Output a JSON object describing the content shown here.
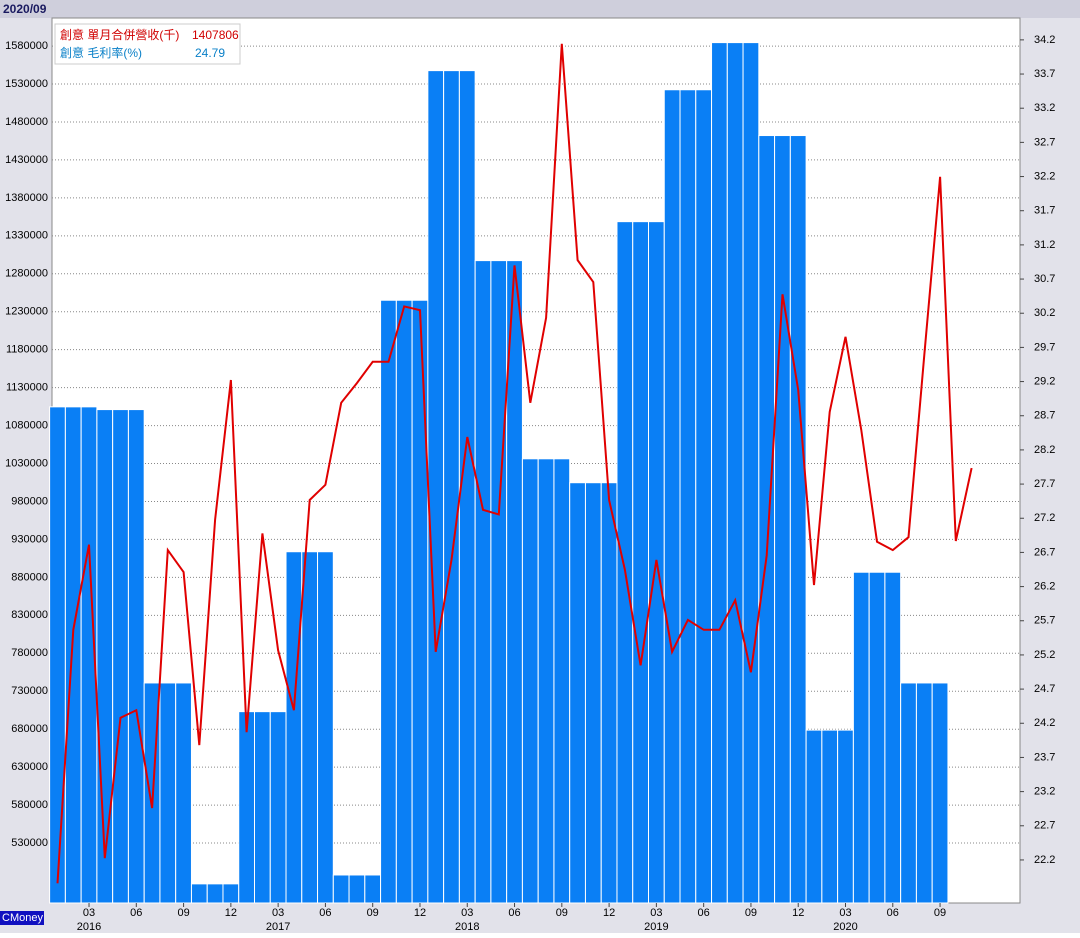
{
  "chart_data": {
    "type": "combo",
    "title": "2020/09",
    "watermark": "CMoney",
    "categories": [
      null,
      null,
      "03",
      null,
      null,
      "06",
      null,
      null,
      "09",
      null,
      null,
      "12",
      null,
      null,
      "03",
      null,
      null,
      "06",
      null,
      null,
      "09",
      null,
      null,
      "12",
      null,
      null,
      "03",
      null,
      null,
      "06",
      null,
      null,
      "09",
      null,
      null,
      "12",
      null,
      null,
      "03",
      null,
      null,
      "06",
      null,
      null,
      "09",
      null,
      null,
      "12",
      null,
      null,
      "03",
      null,
      null,
      "06",
      null,
      null,
      "09",
      null,
      null
    ],
    "years": [
      null,
      null,
      "2016",
      null,
      null,
      null,
      null,
      null,
      null,
      null,
      null,
      null,
      null,
      null,
      "2017",
      null,
      null,
      null,
      null,
      null,
      null,
      null,
      null,
      null,
      null,
      null,
      "2018",
      null,
      null,
      null,
      null,
      null,
      null,
      null,
      null,
      null,
      null,
      null,
      "2019",
      null,
      null,
      null,
      null,
      null,
      null,
      null,
      null,
      null,
      null,
      null,
      "2020",
      null,
      null,
      null,
      null,
      null,
      null,
      null,
      null
    ],
    "series": [
      {
        "name": "創意 毛利率(%)",
        "type": "bar",
        "axis": "y2",
        "color": "#0a7ff5",
        "label_color": "#0a80c8",
        "values": [
          28.83,
          28.83,
          28.83,
          28.79,
          28.79,
          28.79,
          24.79,
          24.79,
          24.79,
          21.85,
          21.85,
          21.85,
          24.37,
          24.37,
          24.37,
          26.71,
          26.71,
          26.71,
          21.98,
          21.98,
          21.98,
          30.39,
          30.39,
          30.39,
          33.75,
          33.75,
          33.75,
          30.97,
          30.97,
          30.97,
          28.07,
          28.07,
          28.07,
          27.72,
          27.72,
          27.72,
          31.54,
          31.54,
          31.54,
          33.47,
          33.47,
          33.47,
          34.16,
          34.16,
          34.16,
          32.8,
          32.8,
          32.8,
          24.1,
          24.1,
          24.1,
          26.41,
          26.41,
          26.41,
          24.79,
          24.79,
          24.79,
          null,
          null
        ]
      },
      {
        "name": "創意 單月合併營收(千)",
        "type": "line",
        "axis": "y",
        "color": "#e00000",
        "label_color": "#d00000",
        "values": [
          477000,
          811000,
          923000,
          510000,
          695000,
          705000,
          576000,
          916000,
          887000,
          659000,
          956000,
          1140000,
          676000,
          938000,
          784000,
          705000,
          982000,
          1002000,
          1110000,
          1136000,
          1164000,
          1164000,
          1237000,
          1232000,
          782000,
          903000,
          1065000,
          969000,
          963000,
          1291000,
          1110000,
          1222000,
          1583000,
          1298000,
          1269000,
          982000,
          890000,
          764000,
          903000,
          782000,
          824000,
          811000,
          811000,
          850000,
          755000,
          909000,
          1253000,
          1127000,
          870000,
          1098000,
          1197000,
          1074000,
          927000,
          916000,
          933000,
          1173000,
          1407806,
          928000,
          1024000
        ]
      }
    ],
    "ylim": [
      451000,
      1617000
    ],
    "yticks": [
      530000,
      580000,
      630000,
      680000,
      730000,
      780000,
      830000,
      880000,
      930000,
      980000,
      1030000,
      1080000,
      1130000,
      1180000,
      1230000,
      1280000,
      1330000,
      1380000,
      1430000,
      1480000,
      1530000,
      1580000
    ],
    "y2lim": [
      21.57,
      34.52
    ],
    "y2ticks": [
      22.2,
      22.7,
      23.2,
      23.7,
      24.2,
      24.7,
      25.2,
      25.7,
      26.2,
      26.7,
      27.2,
      27.7,
      28.2,
      28.7,
      29.2,
      29.7,
      30.2,
      30.7,
      31.2,
      31.7,
      32.2,
      32.7,
      33.2,
      33.7,
      34.2
    ],
    "grid": true
  }
}
